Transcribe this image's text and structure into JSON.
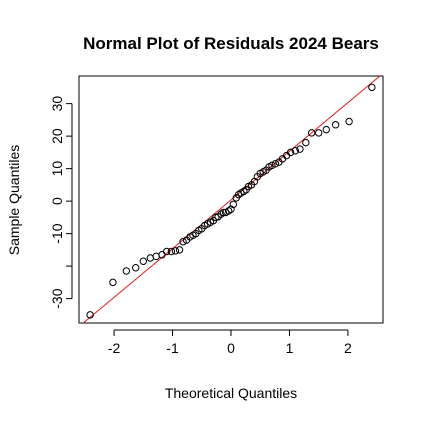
{
  "chart_data": {
    "type": "scatter",
    "title": "Normal Plot of Residuals 2024 Bears",
    "xlabel": "Theoretical Quantiles",
    "ylabel": "Sample Quantiles",
    "xlim": [
      -2.6,
      2.6
    ],
    "ylim": [
      -37.5,
      38.5
    ],
    "xticks": [
      -2,
      -1,
      0,
      1,
      2
    ],
    "yticks": [
      -30,
      -20,
      -10,
      0,
      10,
      20,
      30
    ],
    "ytick_labels": [
      "-30",
      "",
      "-10",
      "0",
      "10",
      "20",
      "30"
    ],
    "point_color": "#000000",
    "reference_line": {
      "color": "#e41a1c",
      "points": [
        [
          -2.6,
          -38.6
        ],
        [
          2.6,
          39.3
        ]
      ]
    },
    "points": [
      [
        -2.41,
        -35.0
      ],
      [
        -2.02,
        -25.0
      ],
      [
        -1.79,
        -21.5
      ],
      [
        -1.63,
        -20.5
      ],
      [
        -1.5,
        -18.5
      ],
      [
        -1.38,
        -17.5
      ],
      [
        -1.28,
        -17.0
      ],
      [
        -1.18,
        -16.5
      ],
      [
        -1.1,
        -15.5
      ],
      [
        -1.02,
        -15.5
      ],
      [
        -0.95,
        -15.3
      ],
      [
        -0.88,
        -15.0
      ],
      [
        -0.82,
        -12.5
      ],
      [
        -0.76,
        -12.0
      ],
      [
        -0.7,
        -11.0
      ],
      [
        -0.65,
        -10.5
      ],
      [
        -0.6,
        -10.0
      ],
      [
        -0.55,
        -9.0
      ],
      [
        -0.5,
        -8.5
      ],
      [
        -0.45,
        -7.5
      ],
      [
        -0.4,
        -7.0
      ],
      [
        -0.35,
        -6.5
      ],
      [
        -0.3,
        -6.0
      ],
      [
        -0.26,
        -5.0
      ],
      [
        -0.22,
        -4.8
      ],
      [
        -0.17,
        -4.0
      ],
      [
        -0.13,
        -3.5
      ],
      [
        -0.09,
        -3.5
      ],
      [
        -0.04,
        -3.0
      ],
      [
        0.0,
        -2.5
      ],
      [
        0.04,
        -1.0
      ],
      [
        0.09,
        1.0
      ],
      [
        0.13,
        2.0
      ],
      [
        0.17,
        2.5
      ],
      [
        0.22,
        3.0
      ],
      [
        0.26,
        3.5
      ],
      [
        0.3,
        4.5
      ],
      [
        0.35,
        5.0
      ],
      [
        0.4,
        6.0
      ],
      [
        0.45,
        7.5
      ],
      [
        0.5,
        8.5
      ],
      [
        0.55,
        9.0
      ],
      [
        0.6,
        9.5
      ],
      [
        0.65,
        10.5
      ],
      [
        0.7,
        11.0
      ],
      [
        0.76,
        11.5
      ],
      [
        0.82,
        12.0
      ],
      [
        0.88,
        13.0
      ],
      [
        0.95,
        14.0
      ],
      [
        1.02,
        15.0
      ],
      [
        1.1,
        15.5
      ],
      [
        1.18,
        16.0
      ],
      [
        1.28,
        18.0
      ],
      [
        1.38,
        21.0
      ],
      [
        1.5,
        21.0
      ],
      [
        1.63,
        22.0
      ],
      [
        1.79,
        23.5
      ],
      [
        2.02,
        24.5
      ],
      [
        2.41,
        35.0
      ]
    ]
  }
}
